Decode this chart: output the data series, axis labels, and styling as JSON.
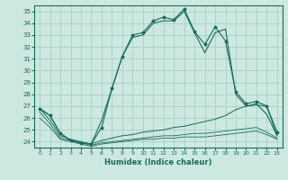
{
  "xlabel": "Humidex (Indice chaleur)",
  "bg_color": "#cce8e0",
  "grid_color": "#9ecec4",
  "line_color": "#1a6b5a",
  "xlim": [
    -0.5,
    23.5
  ],
  "ylim": [
    23.5,
    35.5
  ],
  "yticks": [
    24,
    25,
    26,
    27,
    28,
    29,
    30,
    31,
    32,
    33,
    34,
    35
  ],
  "xticks": [
    0,
    1,
    2,
    3,
    4,
    5,
    6,
    7,
    8,
    9,
    10,
    11,
    12,
    13,
    14,
    15,
    16,
    17,
    18,
    19,
    20,
    21,
    22,
    23
  ],
  "curve_main": [
    26.8,
    26.2,
    24.7,
    24.1,
    23.9,
    23.8,
    25.8,
    28.5,
    31.2,
    32.8,
    33.0,
    34.0,
    34.2,
    34.2,
    35.0,
    33.2,
    31.5,
    33.2,
    33.5,
    28.0,
    27.0,
    27.2,
    26.3,
    24.5
  ],
  "curve_star": [
    26.8,
    26.2,
    24.7,
    24.1,
    23.9,
    23.8,
    25.2,
    28.5,
    31.2,
    33.0,
    33.2,
    34.2,
    34.5,
    34.3,
    35.2,
    33.3,
    32.2,
    33.7,
    32.5,
    28.2,
    27.2,
    27.4,
    27.0,
    24.8
  ],
  "curve_flat1": [
    26.8,
    25.8,
    24.5,
    24.2,
    24.0,
    23.8,
    24.1,
    24.3,
    24.5,
    24.6,
    24.8,
    24.9,
    25.0,
    25.2,
    25.3,
    25.5,
    25.7,
    25.9,
    26.2,
    26.7,
    27.0,
    27.1,
    27.0,
    24.5
  ],
  "curve_flat2": [
    26.5,
    25.5,
    24.3,
    24.1,
    23.9,
    23.7,
    23.9,
    24.0,
    24.1,
    24.2,
    24.3,
    24.4,
    24.5,
    24.5,
    24.6,
    24.7,
    24.7,
    24.8,
    24.9,
    25.0,
    25.1,
    25.2,
    24.8,
    24.3
  ],
  "curve_flat3": [
    26.0,
    25.2,
    24.2,
    24.0,
    23.8,
    23.6,
    23.8,
    23.9,
    24.0,
    24.1,
    24.2,
    24.2,
    24.3,
    24.3,
    24.4,
    24.4,
    24.4,
    24.5,
    24.6,
    24.7,
    24.8,
    24.9,
    24.6,
    24.2
  ]
}
